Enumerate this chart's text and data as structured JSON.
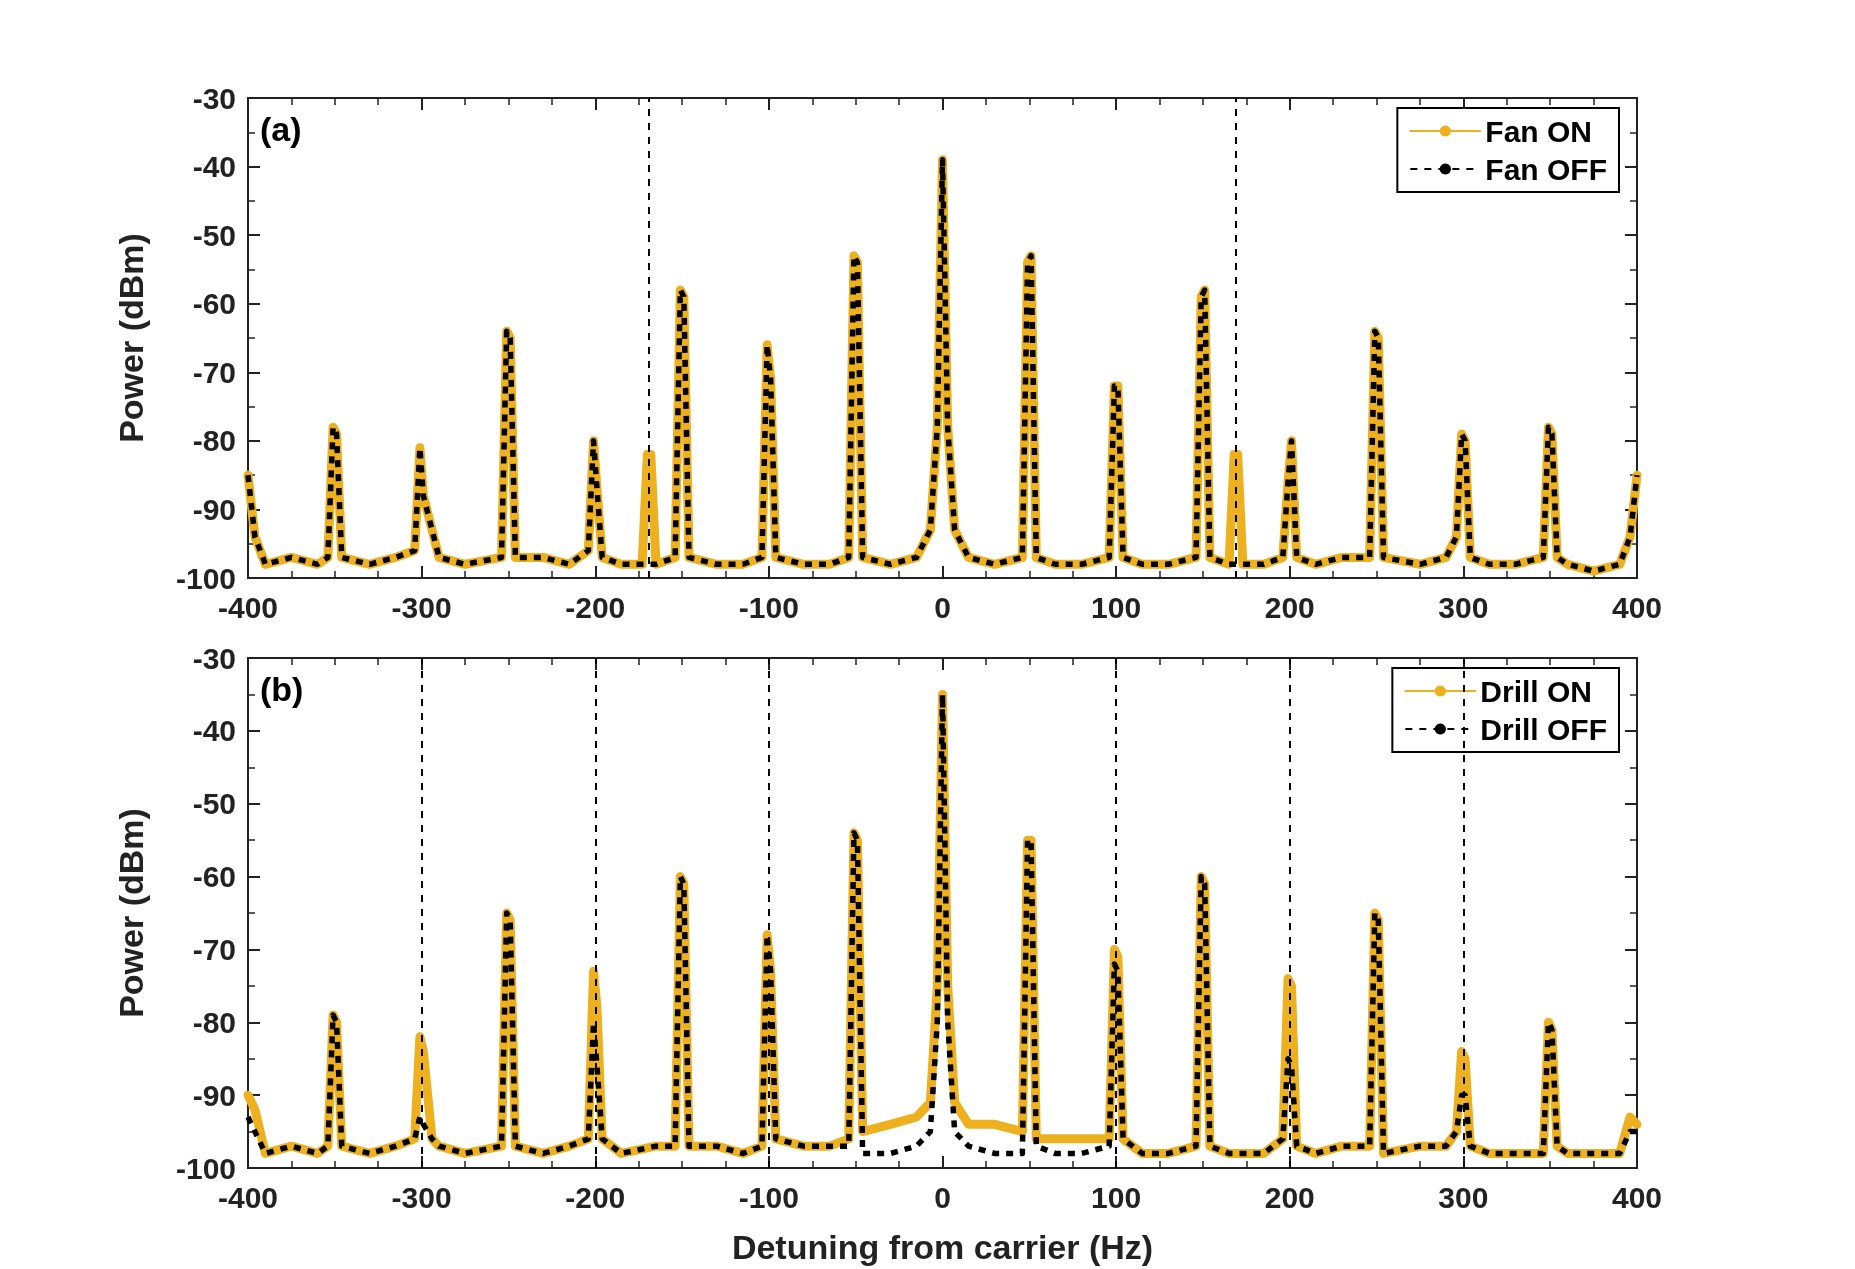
{
  "chart_data": [
    {
      "type": "line",
      "annotations": [
        "(a)"
      ],
      "ylabel": "Power (dBm)",
      "xlim": [
        -400,
        400
      ],
      "xticks": [
        -400,
        -300,
        -200,
        -100,
        0,
        100,
        200,
        300,
        400
      ],
      "ylim": [
        -100,
        -30
      ],
      "yticks": [
        -100,
        -90,
        -80,
        -70,
        -60,
        -50,
        -40,
        -30
      ],
      "grid": false,
      "legend": "top right",
      "marker": "none",
      "x": [
        -400,
        -396,
        -390,
        -375,
        -360,
        -354,
        -351,
        -349,
        -346,
        -330,
        -315,
        -304,
        -301,
        -299,
        -294,
        -290,
        -275,
        -254,
        -251,
        -249,
        -246,
        -230,
        -215,
        -204,
        -201,
        -199,
        -196,
        -185,
        -173,
        -170,
        -168,
        -165,
        -154,
        -151,
        -149,
        -146,
        -130,
        -115,
        -104,
        -101,
        -99,
        -96,
        -80,
        -65,
        -54,
        -51,
        -49,
        -46,
        -30,
        -15,
        -7,
        -3,
        0,
        3,
        7,
        15,
        30,
        46,
        49,
        51,
        54,
        65,
        80,
        96,
        99,
        101,
        104,
        115,
        130,
        146,
        149,
        151,
        154,
        165,
        168,
        170,
        173,
        185,
        196,
        199,
        201,
        204,
        215,
        230,
        246,
        249,
        251,
        254,
        275,
        290,
        296,
        299,
        301,
        304,
        315,
        330,
        346,
        349,
        351,
        354,
        360,
        375,
        390,
        396,
        400
      ],
      "series": [
        {
          "name": "Fan ON",
          "color": "#edb120",
          "line_style": "solid",
          "values": [
            -85,
            -94,
            -98,
            -97,
            -98,
            -97,
            -78,
            -79,
            -97,
            -98,
            -97,
            -96,
            -81,
            -88,
            -93,
            -97,
            -98,
            -97,
            -64,
            -65,
            -97,
            -97,
            -98,
            -96,
            -80,
            -87,
            -97,
            -98,
            -98,
            -82,
            -82,
            -98,
            -97,
            -58,
            -59,
            -97,
            -98,
            -98,
            -97,
            -66,
            -71,
            -97,
            -98,
            -98,
            -97,
            -53,
            -54,
            -97,
            -98,
            -97,
            -93,
            -78,
            -39,
            -78,
            -93,
            -97,
            -98,
            -97,
            -54,
            -53,
            -97,
            -98,
            -98,
            -97,
            -72,
            -72,
            -97,
            -98,
            -98,
            -97,
            -59,
            -58,
            -97,
            -98,
            -82,
            -82,
            -98,
            -98,
            -97,
            -86,
            -80,
            -97,
            -98,
            -97,
            -97,
            -64,
            -65,
            -97,
            -98,
            -97,
            -94,
            -79,
            -80,
            -97,
            -98,
            -98,
            -97,
            -78,
            -79,
            -97,
            -98,
            -99,
            -98,
            -94,
            -85
          ]
        },
        {
          "name": "Fan OFF",
          "color": "#000000",
          "line_style": "dotted",
          "values": [
            -85,
            -94,
            -98,
            -97,
            -98,
            -97,
            -78,
            -79,
            -97,
            -98,
            -97,
            -96,
            -81,
            -88,
            -93,
            -97,
            -98,
            -97,
            -64,
            -65,
            -97,
            -97,
            -98,
            -96,
            -80,
            -87,
            -97,
            -98,
            -98,
            -98,
            -98,
            -98,
            -97,
            -58,
            -59,
            -97,
            -98,
            -98,
            -97,
            -66,
            -71,
            -97,
            -98,
            -98,
            -97,
            -53,
            -54,
            -97,
            -98,
            -97,
            -93,
            -78,
            -39,
            -78,
            -93,
            -97,
            -98,
            -97,
            -54,
            -53,
            -97,
            -98,
            -98,
            -97,
            -72,
            -72,
            -97,
            -98,
            -98,
            -97,
            -59,
            -58,
            -97,
            -98,
            -98,
            -98,
            -98,
            -98,
            -97,
            -86,
            -80,
            -97,
            -98,
            -97,
            -97,
            -64,
            -65,
            -97,
            -98,
            -97,
            -94,
            -79,
            -80,
            -97,
            -98,
            -98,
            -97,
            -78,
            -79,
            -97,
            -98,
            -99,
            -98,
            -94,
            -85
          ]
        }
      ],
      "ref_lines": [
        {
          "axis": "x",
          "value": -169,
          "color": "#000000",
          "line_style": "dotted"
        },
        {
          "axis": "x",
          "value": 169,
          "color": "#000000",
          "line_style": "dotted"
        }
      ]
    },
    {
      "type": "line",
      "annotations": [
        "(b)"
      ],
      "xlabel": "Detuning from carrier (Hz)",
      "ylabel": "Power (dBm)",
      "xlim": [
        -400,
        400
      ],
      "xticks": [
        -400,
        -300,
        -200,
        -100,
        0,
        100,
        200,
        300,
        400
      ],
      "ylim": [
        -100,
        -30
      ],
      "yticks": [
        -100,
        -90,
        -80,
        -70,
        -60,
        -50,
        -40,
        -30
      ],
      "grid": false,
      "legend": "top right",
      "marker": "none",
      "x": [
        -400,
        -396,
        -390,
        -375,
        -360,
        -354,
        -351,
        -349,
        -346,
        -330,
        -315,
        -304,
        -301,
        -299,
        -294,
        -290,
        -275,
        -254,
        -251,
        -249,
        -246,
        -230,
        -215,
        -204,
        -201,
        -199,
        -196,
        -185,
        -165,
        -154,
        -151,
        -149,
        -146,
        -130,
        -115,
        -104,
        -101,
        -99,
        -96,
        -80,
        -65,
        -54,
        -51,
        -49,
        -46,
        -30,
        -15,
        -7,
        -3,
        0,
        3,
        7,
        15,
        30,
        46,
        49,
        51,
        54,
        65,
        80,
        96,
        99,
        101,
        104,
        115,
        130,
        146,
        149,
        151,
        154,
        165,
        185,
        196,
        199,
        201,
        204,
        215,
        230,
        246,
        249,
        251,
        254,
        275,
        290,
        296,
        299,
        301,
        304,
        315,
        330,
        346,
        349,
        351,
        354,
        360,
        375,
        390,
        396,
        400
      ],
      "series": [
        {
          "name": "Drill ON",
          "color": "#edb120",
          "line_style": "solid",
          "values": [
            -90,
            -92,
            -98,
            -97,
            -98,
            -97,
            -79,
            -80,
            -97,
            -98,
            -97,
            -96,
            -82,
            -84,
            -96,
            -97,
            -98,
            -97,
            -65,
            -66,
            -97,
            -98,
            -97,
            -96,
            -73,
            -78,
            -96,
            -98,
            -97,
            -97,
            -60,
            -61,
            -97,
            -97,
            -98,
            -97,
            -68,
            -73,
            -96,
            -97,
            -97,
            -96,
            -54,
            -55,
            -95,
            -94,
            -93,
            -91,
            -75,
            -35,
            -75,
            -91,
            -94,
            -94,
            -95,
            -55,
            -55,
            -96,
            -96,
            -96,
            -96,
            -70,
            -71,
            -96,
            -98,
            -98,
            -97,
            -60,
            -61,
            -97,
            -98,
            -98,
            -96,
            -74,
            -75,
            -97,
            -98,
            -97,
            -97,
            -65,
            -66,
            -98,
            -97,
            -97,
            -95,
            -84,
            -85,
            -97,
            -98,
            -98,
            -98,
            -80,
            -81,
            -97,
            -98,
            -98,
            -98,
            -93,
            -94
          ]
        },
        {
          "name": "Drill OFF",
          "color": "#000000",
          "line_style": "dotted",
          "values": [
            -93,
            -95,
            -98,
            -97,
            -98,
            -97,
            -79,
            -80,
            -97,
            -98,
            -97,
            -96,
            -93,
            -94,
            -96,
            -97,
            -98,
            -97,
            -65,
            -66,
            -97,
            -98,
            -97,
            -96,
            -80,
            -86,
            -96,
            -98,
            -97,
            -97,
            -60,
            -61,
            -97,
            -97,
            -98,
            -97,
            -68,
            -73,
            -96,
            -97,
            -97,
            -97,
            -54,
            -55,
            -98,
            -98,
            -97,
            -95,
            -80,
            -35,
            -80,
            -95,
            -97,
            -98,
            -98,
            -55,
            -55,
            -97,
            -98,
            -98,
            -97,
            -72,
            -73,
            -96,
            -98,
            -98,
            -97,
            -60,
            -61,
            -97,
            -98,
            -98,
            -96,
            -85,
            -86,
            -97,
            -98,
            -97,
            -97,
            -65,
            -66,
            -98,
            -97,
            -97,
            -95,
            -90,
            -90,
            -97,
            -98,
            -98,
            -98,
            -80,
            -81,
            -97,
            -98,
            -98,
            -98,
            -95,
            -95
          ]
        }
      ],
      "ref_lines": [
        {
          "axis": "x",
          "value": -300,
          "color": "#000000",
          "line_style": "dotted"
        },
        {
          "axis": "x",
          "value": -200,
          "color": "#000000",
          "line_style": "dotted"
        },
        {
          "axis": "x",
          "value": -100,
          "color": "#000000",
          "line_style": "dotted"
        },
        {
          "axis": "x",
          "value": 100,
          "color": "#000000",
          "line_style": "dotted"
        },
        {
          "axis": "x",
          "value": 200,
          "color": "#000000",
          "line_style": "dotted"
        },
        {
          "axis": "x",
          "value": 300,
          "color": "#000000",
          "line_style": "dotted"
        }
      ]
    }
  ]
}
